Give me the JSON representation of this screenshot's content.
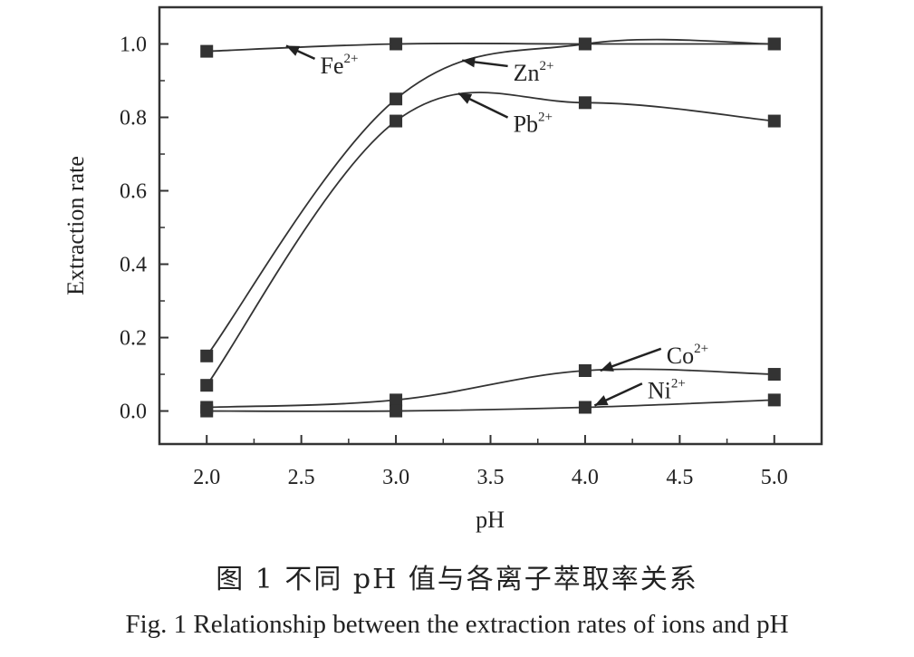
{
  "chart_data": {
    "type": "line",
    "xlabel": "pH",
    "ylabel": "Extraction rate",
    "xlim": [
      1.75,
      5.25
    ],
    "ylim": [
      -0.09,
      1.1
    ],
    "x_ticks": [
      "2.0",
      "2.5",
      "3.0",
      "3.5",
      "4.0",
      "4.5",
      "5.0"
    ],
    "y_ticks": [
      "0.0",
      "0.2",
      "0.4",
      "0.6",
      "0.8",
      "1.0"
    ],
    "x": [
      2.0,
      3.0,
      4.0,
      5.0
    ],
    "series": [
      {
        "name": "Fe",
        "charge": "2+",
        "values": [
          0.98,
          1.0,
          1.0,
          1.0
        ]
      },
      {
        "name": "Zn",
        "charge": "2+",
        "values": [
          0.15,
          0.85,
          1.0,
          1.0
        ]
      },
      {
        "name": "Pb",
        "charge": "2+",
        "values": [
          0.07,
          0.79,
          0.84,
          0.79
        ]
      },
      {
        "name": "Co",
        "charge": "2+",
        "values": [
          0.01,
          0.03,
          0.11,
          0.1
        ]
      },
      {
        "name": "Ni",
        "charge": "2+",
        "values": [
          0.0,
          0.0,
          0.01,
          0.03
        ]
      }
    ],
    "grid": false,
    "legend": "inline arrow labels"
  },
  "caption": {
    "cn": "图 1    不同 pH 值与各离子萃取率关系",
    "en": "Fig. 1    Relationship between the extraction rates of ions and pH"
  }
}
